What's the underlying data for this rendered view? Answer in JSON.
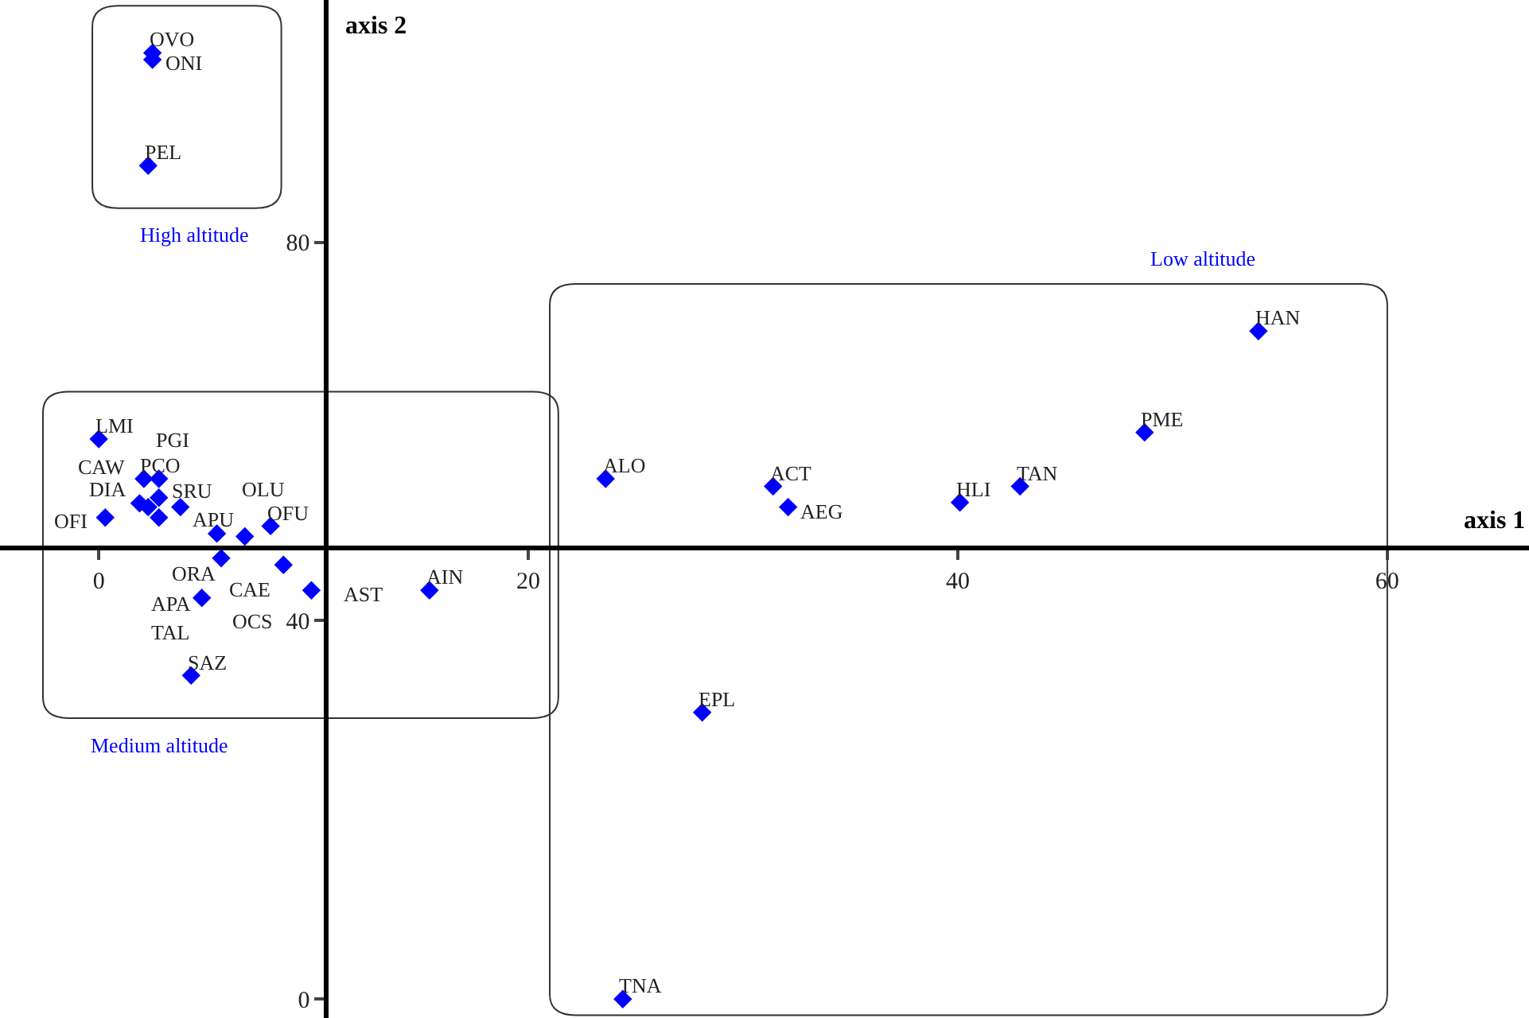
{
  "chart_data": {
    "type": "scatter",
    "xlabel": "axis 1",
    "ylabel": "axis 2",
    "xlim": [
      -4.6,
      66.6
    ],
    "ylim": [
      -2.0,
      105.6
    ],
    "xticks": [
      0,
      20,
      40,
      60
    ],
    "yticks": [
      0,
      40,
      80
    ],
    "grid": false,
    "legend": false,
    "marker": "diamond",
    "series": [
      {
        "name": "High altitude",
        "color": "#0000ff",
        "x": [
          2.5,
          2.5,
          2.3
        ],
        "values": [
          100.0,
          99.3,
          88.1
        ]
      },
      {
        "name": "Low altitude",
        "color": "#0000ff",
        "x": [
          23.6,
          31.4,
          32.1,
          40.1,
          42.9,
          48.7,
          54.0,
          28.1,
          24.4
        ],
        "values": [
          55.0,
          54.2,
          52.0,
          52.5,
          54.2,
          59.9,
          70.6,
          30.3,
          0.0
        ]
      },
      {
        "name": "Medium altitude",
        "color": "#0000ff",
        "x": [
          0.0,
          2.1,
          2.8,
          2.8,
          1.9,
          2.3,
          3.8,
          0.3,
          2.8,
          5.5,
          8.0,
          6.8,
          5.7,
          8.6,
          9.9,
          15.4,
          4.8,
          4.3
        ],
        "values": [
          59.2,
          55.0,
          55.0,
          53.0,
          52.4,
          52.0,
          52.0,
          50.9,
          50.9,
          49.2,
          50.0,
          48.9,
          46.6,
          45.9,
          43.2,
          43.2,
          42.4,
          34.2
        ]
      }
    ],
    "annotations": [
      {
        "text": "OVO",
        "x": 2.5,
        "y": 100.0
      },
      {
        "text": "ONI",
        "x": 2.5,
        "y": 99.3
      },
      {
        "text": "PEL",
        "x": 2.3,
        "y": 88.1
      },
      {
        "text": "ALO",
        "x": 23.6,
        "y": 55.0
      },
      {
        "text": "ACT",
        "x": 31.4,
        "y": 54.2
      },
      {
        "text": "AEG",
        "x": 32.1,
        "y": 52.0
      },
      {
        "text": "HLI",
        "x": 40.1,
        "y": 52.5
      },
      {
        "text": "TAN",
        "x": 42.9,
        "y": 54.2
      },
      {
        "text": "PME",
        "x": 48.7,
        "y": 59.9
      },
      {
        "text": "HAN",
        "x": 54.0,
        "y": 70.6
      },
      {
        "text": "EPL",
        "x": 28.1,
        "y": 30.3
      },
      {
        "text": "TNA",
        "x": 24.4,
        "y": 0.0
      },
      {
        "text": "LMI",
        "x": 0.0,
        "y": 59.2
      },
      {
        "text": "PCO",
        "x": 2.1,
        "y": 55.0
      },
      {
        "text": "SRU",
        "x": 2.8,
        "y": 55.0
      },
      {
        "text": "PGI",
        "x": 2.8,
        "y": 53.0
      },
      {
        "text": "DIA",
        "x": 1.9,
        "y": 52.4
      },
      {
        "text": "CAW",
        "x": 2.3,
        "y": 52.0
      },
      {
        "text": "APU",
        "x": 3.8,
        "y": 52.0
      },
      {
        "text": "OFI",
        "x": 0.3,
        "y": 50.9
      },
      {
        "text": "ORA",
        "x": 2.8,
        "y": 50.9
      },
      {
        "text": "CAE",
        "x": 5.5,
        "y": 49.2
      },
      {
        "text": "OFU",
        "x": 8.0,
        "y": 50.0
      },
      {
        "text": "OLU",
        "x": 6.8,
        "y": 48.9
      },
      {
        "text": "APA",
        "x": 5.7,
        "y": 46.6
      },
      {
        "text": "OCS",
        "x": 8.6,
        "y": 45.9
      },
      {
        "text": "AST",
        "x": 9.9,
        "y": 43.2
      },
      {
        "text": "AIN",
        "x": 15.4,
        "y": 43.2
      },
      {
        "text": "TAL",
        "x": 4.8,
        "y": 42.4
      },
      {
        "text": "SAZ",
        "x": 4.3,
        "y": 34.2
      }
    ]
  }
}
